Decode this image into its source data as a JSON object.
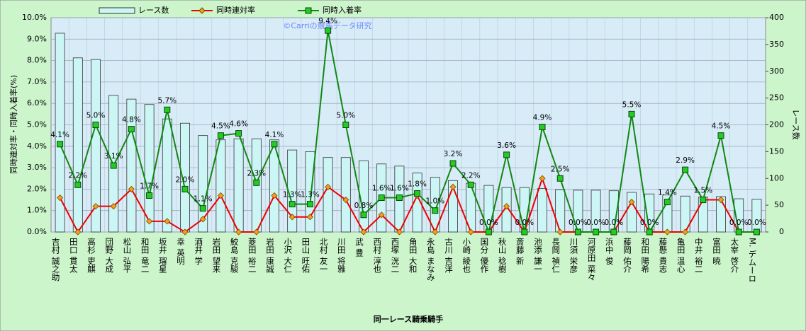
{
  "chart_data": {
    "type": "combo",
    "annotation": "©Carriの競馬データ研究",
    "y_label": "同時連対率・同時入着率(%)",
    "y2_label": "レース数",
    "x_label": "同一レース騎乗騎手",
    "categories": [
      "吉村 誠之助",
      "田口 貫太",
      "高杉 吏麒",
      "団野 大成",
      "松山 弘平",
      "和田 竜二",
      "坂井 瑠星",
      "幸 英明",
      "酒井 学",
      "岩田 望来",
      "鮫島 克駿",
      "菱田 裕二",
      "岩田 康誠",
      "小沢 大仁",
      "田山 旺佑",
      "北村 友一",
      "川田 将雅",
      "武 豊",
      "西村 淳也",
      "西塚 洸二",
      "角田 大和",
      "永島 まなみ",
      "古川 吉洋",
      "小崎 綾也",
      "国分 優作",
      "秋山 稔樹",
      "斎藤 新",
      "池添 謙一",
      "長岡 禎仁",
      "川須 栄彦",
      "河原田 菜々",
      "浜中 俊",
      "藤岡 佑介",
      "和田 陽希",
      "藤懸 貴志",
      "亀田 温心",
      "中井 裕二",
      "富田 暁",
      "太宰 啓介",
      "M. デムーロ"
    ],
    "series": [
      {
        "name": "レース数",
        "type": "bar",
        "axis": "y2",
        "color": "#ccf5f5",
        "values": [
          371,
          325,
          322,
          255,
          248,
          238,
          211,
          203,
          180,
          172,
          174,
          174,
          172,
          153,
          150,
          139,
          139,
          133,
          127,
          123,
          110,
          102,
          96,
          91,
          87,
          83,
          83,
          81,
          79,
          78,
          78,
          77,
          74,
          71,
          69,
          67,
          65,
          66,
          62,
          61
        ]
      },
      {
        "name": "同時連対率",
        "type": "line",
        "color": "#ee0000",
        "marker_color": "#f0a020",
        "values": [
          1.6,
          0,
          1.2,
          1.2,
          2.0,
          0.5,
          0.5,
          0,
          0.6,
          1.7,
          0,
          0,
          1.7,
          0.7,
          0.7,
          2.1,
          1.5,
          0,
          0.8,
          0,
          1.7,
          0,
          2.1,
          0,
          0,
          1.2,
          0,
          2.5,
          0,
          0,
          0,
          0,
          1.4,
          0,
          0,
          0,
          1.5,
          1.5,
          0,
          0
        ]
      },
      {
        "name": "同時入着率",
        "type": "line",
        "color": "#118811",
        "marker_color": "#22cc22",
        "values": [
          4.1,
          2.2,
          5.0,
          3.1,
          4.8,
          1.7,
          5.7,
          2.0,
          1.1,
          4.5,
          4.6,
          2.3,
          4.1,
          1.3,
          1.3,
          9.4,
          5.0,
          0.8,
          1.6,
          1.6,
          1.8,
          1.0,
          3.2,
          2.2,
          0.0,
          3.6,
          0.0,
          4.9,
          2.5,
          0.0,
          0.0,
          0.0,
          5.5,
          0.0,
          1.4,
          2.9,
          1.5,
          4.5,
          0.0,
          0.0
        ],
        "value_labels": [
          "4.1%",
          "2.2%",
          "5.0%",
          "3.1%",
          "4.8%",
          "1.7%",
          "5.7%",
          "2.0%",
          "1.1%",
          "4.5%",
          "4.6%",
          "2.3%",
          "4.1%",
          "1.3%",
          "1.3%",
          "9.4%",
          "5.0%",
          "0.8%",
          "1.6%",
          "1.6%",
          "1.8%",
          "1.0%",
          "3.2%",
          "2.2%",
          "0.0%",
          "3.6%",
          "0.0%",
          "4.9%",
          "2.5%",
          "0.0%",
          "0.0%",
          "0.0%",
          "5.5%",
          "0.0%",
          "1.4%",
          "2.9%",
          "1.5%",
          "4.5%",
          "0.0%",
          "0.0%"
        ]
      }
    ],
    "ylim": [
      0,
      10
    ],
    "yticks": [
      {
        "value": 0,
        "label": "0.0%"
      },
      {
        "value": 1,
        "label": "1.0%"
      },
      {
        "value": 2,
        "label": "2.0%"
      },
      {
        "value": 3,
        "label": "3.0%"
      },
      {
        "value": 4,
        "label": "4.0%"
      },
      {
        "value": 5,
        "label": "5.0%"
      },
      {
        "value": 6,
        "label": "6.0%"
      },
      {
        "value": 7,
        "label": "7.0%"
      },
      {
        "value": 8,
        "label": "8.0%"
      },
      {
        "value": 9,
        "label": "9.0%"
      },
      {
        "value": 10,
        "label": "10.0%"
      }
    ],
    "y2lim": [
      0,
      400
    ],
    "y2ticks": [
      0,
      50,
      100,
      150,
      200,
      250,
      300,
      350,
      400
    ],
    "grid": true,
    "legend": "top"
  }
}
